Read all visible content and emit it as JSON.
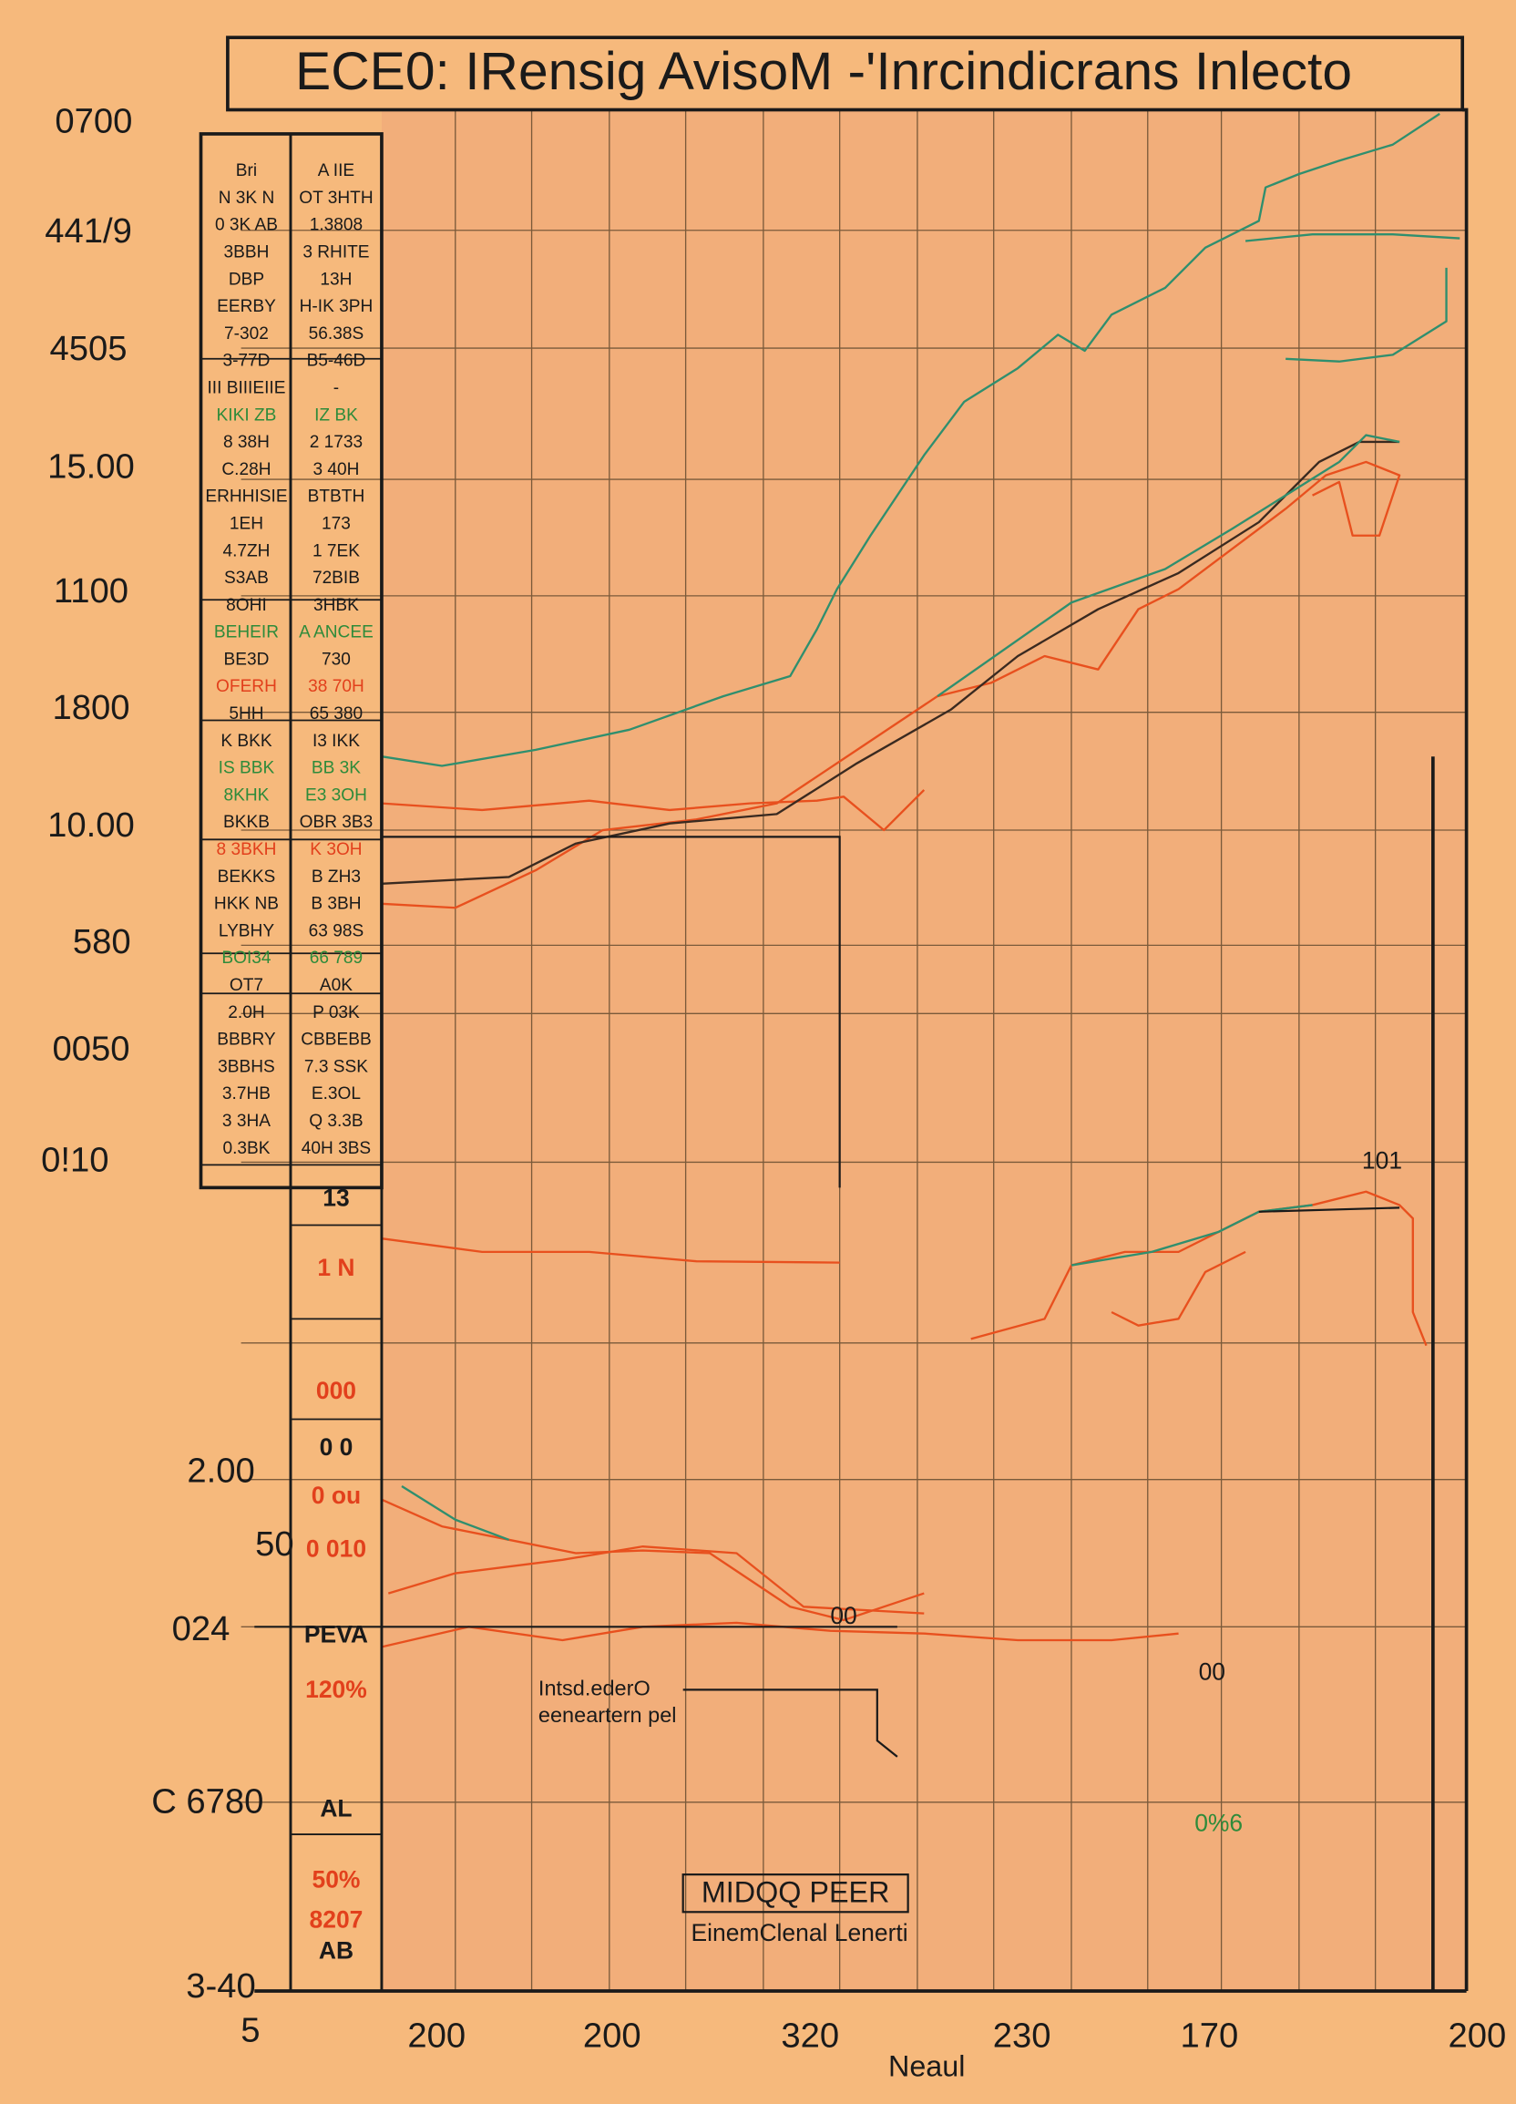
{
  "chart_data": {
    "type": "line",
    "title": "ECE0: IRensig AvisoM -'Inrcindicrans Inlecto",
    "x_label": "Neaul",
    "y_labels": [
      "0700",
      "441/9",
      "4505",
      "15.00",
      "1100",
      "1800",
      "10.00",
      "580",
      "0050",
      "0!10",
      "2.00",
      "50",
      "024",
      "C 6780",
      "3-40",
      "5"
    ],
    "x_labels": [
      "200",
      "200",
      "320",
      "230",
      "170",
      "200"
    ],
    "annotations": [
      "Intsd.ederO",
      "eeneartern pel",
      "MIDQQ PEER",
      "EinemClenal Lenerti",
      "101",
      "0%6",
      "00",
      "00"
    ],
    "side_labels": [
      {
        "text": "13",
        "color": "#1a1a1a"
      },
      {
        "text": "1 N",
        "color": "#e2401c"
      },
      {
        "text": "000",
        "color": "#e2401c"
      },
      {
        "text": "0 0",
        "color": "#1a1a1a"
      },
      {
        "text": "0 ou",
        "color": "#e2401c"
      },
      {
        "text": "0 010",
        "color": "#e2401c"
      },
      {
        "text": "PEVA",
        "color": "#1a1a1a"
      },
      {
        "text": "120%",
        "color": "#e2401c"
      },
      {
        "text": "AL",
        "color": "#1a1a1a"
      },
      {
        "text": "50%",
        "color": "#e2401c"
      },
      {
        "text": "8207",
        "color": "#e2401c"
      },
      {
        "text": "AB",
        "color": "#1a1a1a"
      }
    ]
  },
  "table": {
    "rows": [
      {
        "cells": [
          "Bri",
          "A IIE"
        ],
        "color": "#1a1a1a"
      },
      {
        "cells": [
          "N 3K N",
          "OT 3HTH"
        ],
        "color": "#1a1a1a"
      },
      {
        "cells": [
          "0 3K AB",
          "1.3808"
        ],
        "color": "#1a1a1a"
      },
      {
        "cells": [
          "3BBH",
          "3 RHITE"
        ],
        "color": "#1a1a1a"
      },
      {
        "cells": [
          "DBP",
          "13H"
        ],
        "color": "#1a1a1a"
      },
      {
        "cells": [
          "EERBY",
          "H-IK 3PH"
        ],
        "color": "#1a1a1a"
      },
      {
        "cells": [
          "7-302",
          "56.38S"
        ],
        "color": "#1a1a1a"
      },
      {
        "cells": [
          "3-77D",
          "B5-46D"
        ],
        "color": "#1a1a1a"
      },
      {
        "cells": [
          "III BIIIEIIE",
          "-"
        ],
        "color": "#1a1a1a"
      },
      {
        "cells": [
          "KIKI ZB",
          "IZ BK"
        ],
        "color": "#2e8b3a"
      },
      {
        "cells": [
          "8 38H",
          "2 1733"
        ],
        "color": "#1a1a1a"
      },
      {
        "cells": [
          "C.28H",
          "3 40H"
        ],
        "color": "#1a1a1a"
      },
      {
        "cells": [
          "ERHHISIE",
          "BTBTH"
        ],
        "color": "#1a1a1a"
      },
      {
        "cells": [
          "1EH",
          "173"
        ],
        "color": "#1a1a1a"
      },
      {
        "cells": [
          "4.7ZH",
          "1 7EK"
        ],
        "color": "#1a1a1a"
      },
      {
        "cells": [
          "S3AB",
          "72BIB"
        ],
        "color": "#1a1a1a"
      },
      {
        "cells": [
          "8OHI",
          "3HBK"
        ],
        "color": "#1a1a1a"
      },
      {
        "cells": [
          "BEHEIR",
          "A ANCEE"
        ],
        "color": "#2e8b3a"
      },
      {
        "cells": [
          "BE3D",
          "730"
        ],
        "color": "#1a1a1a"
      },
      {
        "cells": [
          "OFERH",
          "38 70H"
        ],
        "color": "#e2401c"
      },
      {
        "cells": [
          "5HH",
          "65 380"
        ],
        "color": "#1a1a1a"
      },
      {
        "cells": [
          "K BKK",
          "I3 IKK"
        ],
        "color": "#1a1a1a"
      },
      {
        "cells": [
          "IS BBK",
          "BB 3K"
        ],
        "color": "#2e8b3a"
      },
      {
        "cells": [
          "8KHK",
          "E3 3OH"
        ],
        "color": "#2e8b3a"
      },
      {
        "cells": [
          "BKKB",
          "OBR 3B3"
        ],
        "color": "#1a1a1a"
      },
      {
        "cells": [
          "8 3BKH",
          "K 3OH"
        ],
        "color": "#e2401c"
      },
      {
        "cells": [
          "BEKKS",
          "B ZH3"
        ],
        "color": "#1a1a1a"
      },
      {
        "cells": [
          "HKK NB",
          "B 3BH"
        ],
        "color": "#1a1a1a"
      },
      {
        "cells": [
          "LYBHY",
          "63 98S"
        ],
        "color": "#1a1a1a"
      },
      {
        "cells": [
          "BOI34",
          "66 789"
        ],
        "color": "#2e8b3a"
      },
      {
        "cells": [
          "OT7",
          "A0K"
        ],
        "color": "#1a1a1a"
      },
      {
        "cells": [
          "2.0H",
          "P 03K"
        ],
        "color": "#1a1a1a"
      },
      {
        "cells": [
          "BBBRY",
          "CBBEBB"
        ],
        "color": "#1a1a1a"
      },
      {
        "cells": [
          "3BBHS",
          "7.3 SSK"
        ],
        "color": "#1a1a1a"
      },
      {
        "cells": [
          "3.7HB",
          "E.3OL"
        ],
        "color": "#1a1a1a"
      },
      {
        "cells": [
          "3 3HA",
          "Q 3.3B"
        ],
        "color": "#1a1a1a"
      },
      {
        "cells": [
          "0.3BK",
          "40H 3BS"
        ],
        "color": "#1a1a1a"
      }
    ]
  }
}
